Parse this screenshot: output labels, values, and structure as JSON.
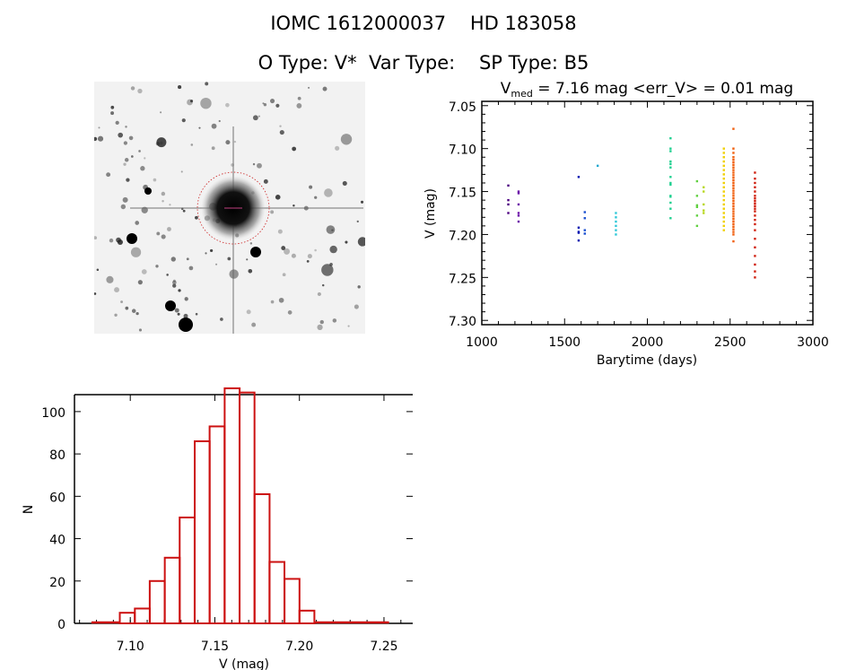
{
  "header": {
    "title_line1": "IOMC 1612000037    HD 183058",
    "title_line2": "O Type: V*  Var Type:    SP Type: B5"
  },
  "colors": {
    "axis": "#000000",
    "histogram": "#cc1111",
    "circle": "#cc2222"
  },
  "chart_data": [
    {
      "type": "scatter",
      "title_prefix": "V",
      "title_sub": "med",
      "title_rest": " = 7.16 mag <err_V> = 0.01 mag",
      "xlabel": "Barytime (days)",
      "ylabel": "V (mag)",
      "xlim": [
        1000,
        3000
      ],
      "ylim": [
        7.045,
        7.305
      ],
      "y_inverted": true,
      "xticks": [
        "1000",
        "1500",
        "2000",
        "2500",
        "3000"
      ],
      "yticks": [
        "7.05",
        "7.10",
        "7.15",
        "7.20",
        "7.25",
        "7.30"
      ],
      "series": [
        {
          "x": 1160,
          "color": "#4b0080",
          "y": [
            7.143,
            7.16,
            7.165,
            7.175
          ]
        },
        {
          "x": 1222,
          "color": "#6a10a8",
          "y": [
            7.15,
            7.152,
            7.165,
            7.175,
            7.178,
            7.185
          ]
        },
        {
          "x": 1585,
          "color": "#0010b0",
          "y": [
            7.133,
            7.192,
            7.197,
            7.198,
            7.207
          ]
        },
        {
          "x": 1622,
          "color": "#1a50d0",
          "y": [
            7.174,
            7.181,
            7.195,
            7.199
          ]
        },
        {
          "x": 1700,
          "color": "#20a8d0",
          "y": [
            7.12
          ]
        },
        {
          "x": 1810,
          "color": "#30c8d8",
          "y": [
            7.175,
            7.18,
            7.185,
            7.19,
            7.195,
            7.2
          ]
        },
        {
          "x": 2140,
          "color": "#20d090",
          "y": [
            7.088,
            7.1,
            7.103,
            7.115,
            7.118,
            7.122,
            7.133,
            7.14,
            7.142,
            7.155,
            7.156,
            7.163,
            7.17,
            7.181
          ]
        },
        {
          "x": 2300,
          "color": "#60d040",
          "y": [
            7.138,
            7.155,
            7.166,
            7.168,
            7.178,
            7.19
          ]
        },
        {
          "x": 2340,
          "color": "#b8d820",
          "y": [
            7.145,
            7.15,
            7.165,
            7.172,
            7.175
          ]
        },
        {
          "x": 2462,
          "color": "#f0d000",
          "y": [
            7.1,
            7.105,
            7.11,
            7.115,
            7.12,
            7.125,
            7.13,
            7.135,
            7.14,
            7.145,
            7.15,
            7.155,
            7.16,
            7.165,
            7.17,
            7.175,
            7.18,
            7.185,
            7.19,
            7.195
          ]
        },
        {
          "x": 2520,
          "color": "#f06010",
          "y": [
            7.077,
            7.1,
            7.105,
            7.11,
            7.113,
            7.116,
            7.119,
            7.122,
            7.125,
            7.128,
            7.131,
            7.134,
            7.137,
            7.14,
            7.143,
            7.146,
            7.149,
            7.152,
            7.155,
            7.158,
            7.161,
            7.164,
            7.167,
            7.17,
            7.173,
            7.176,
            7.179,
            7.182,
            7.185,
            7.188,
            7.191,
            7.194,
            7.197,
            7.2,
            7.208
          ]
        },
        {
          "x": 2650,
          "color": "#d02010",
          "y": [
            7.128,
            7.135,
            7.14,
            7.145,
            7.15,
            7.155,
            7.158,
            7.161,
            7.164,
            7.167,
            7.17,
            7.173,
            7.178,
            7.183,
            7.188,
            7.195,
            7.205,
            7.215,
            7.225,
            7.235,
            7.243,
            7.25
          ]
        }
      ]
    },
    {
      "type": "bar",
      "xlabel": "V (mag)",
      "ylabel": "N",
      "xlim": [
        7.067,
        7.267
      ],
      "ylim": [
        0,
        108
      ],
      "xticks": [
        "7.10",
        "7.15",
        "7.20",
        "7.25"
      ],
      "yticks": [
        "0",
        "20",
        "40",
        "60",
        "80",
        "100"
      ],
      "bin_width": 0.00885,
      "bin_starts": [
        7.0938,
        7.1027,
        7.1115,
        7.1204,
        7.1292,
        7.1381,
        7.1469,
        7.1558,
        7.1646,
        7.1735,
        7.1823,
        7.1912,
        7.2
      ],
      "values": [
        5,
        7,
        20,
        31,
        50,
        86,
        93,
        111,
        109,
        61,
        29,
        21,
        6
      ],
      "zero_range_low": [
        7.077,
        7.0938
      ],
      "zero_range_high": [
        7.2089,
        7.253
      ]
    }
  ]
}
